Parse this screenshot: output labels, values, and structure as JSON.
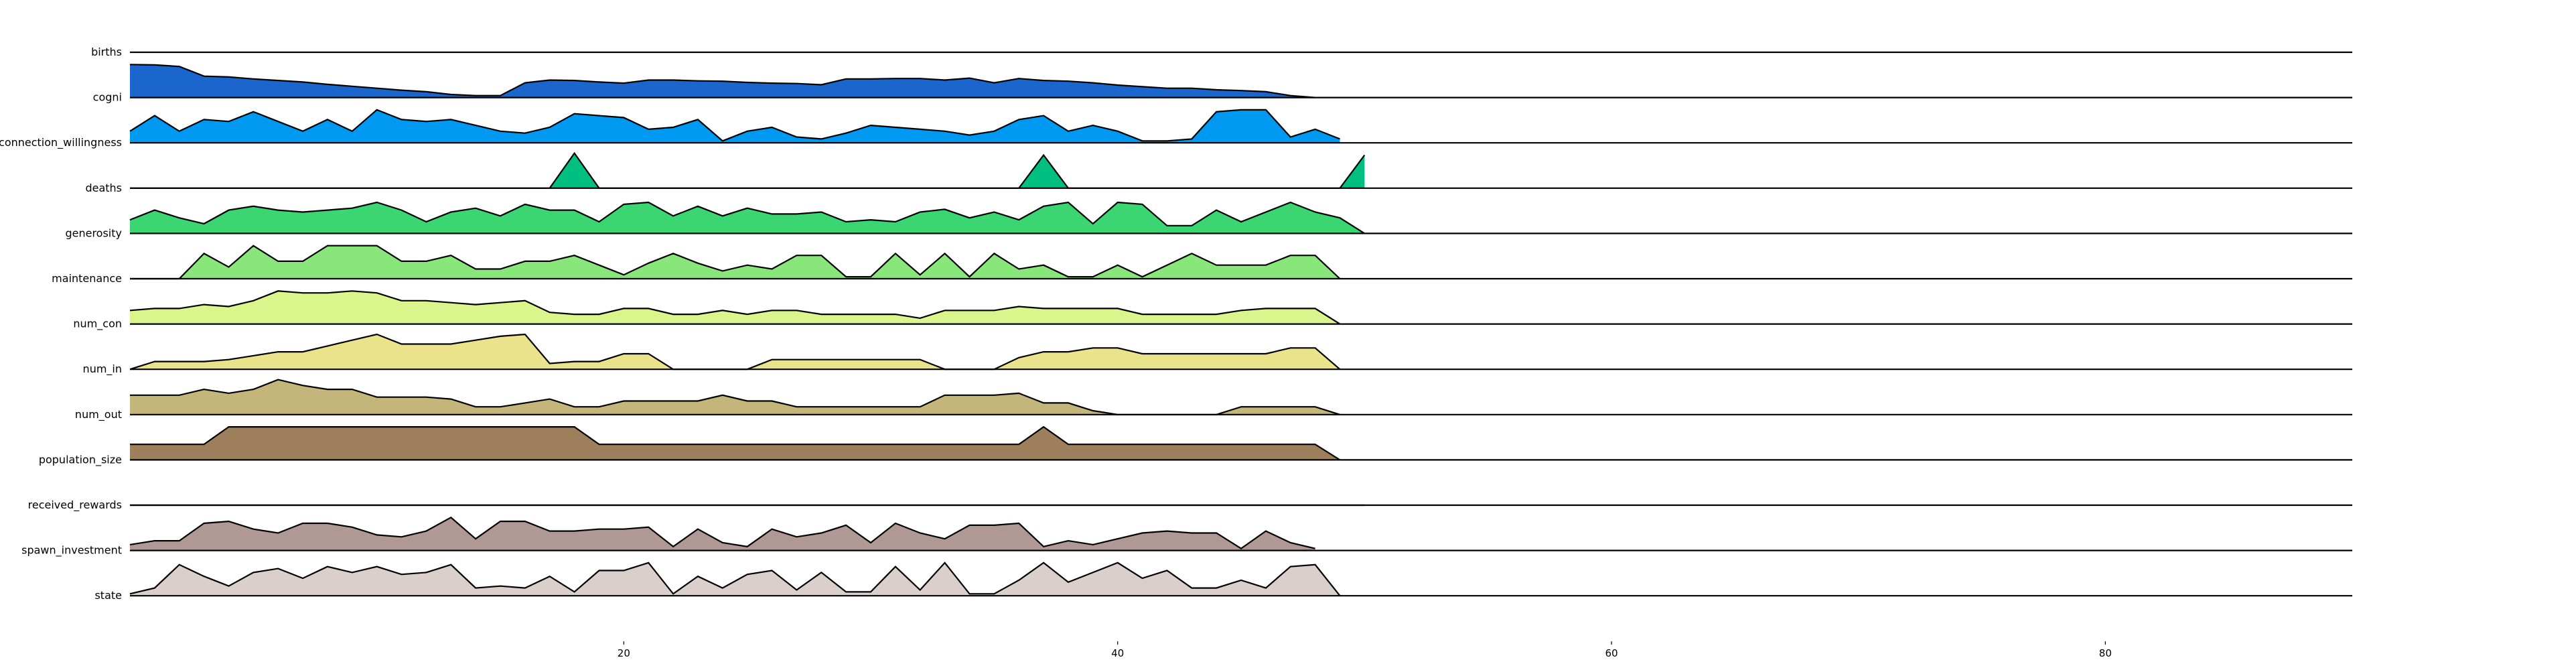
{
  "chart_data": {
    "type": "area",
    "xlim": [
      0,
      90
    ],
    "xticks": [
      20,
      40,
      60,
      80
    ],
    "xtick_labels": [
      "20",
      "40",
      "60",
      "80"
    ],
    "x": [
      0,
      1,
      2,
      3,
      4,
      5,
      6,
      7,
      8,
      9,
      10,
      11,
      12,
      13,
      14,
      15,
      16,
      17,
      18,
      19,
      20,
      21,
      22,
      23,
      24,
      25,
      26,
      27,
      28,
      29,
      30,
      31,
      32,
      33,
      34,
      35,
      36,
      37,
      38,
      39,
      40,
      41,
      42,
      43,
      44,
      45,
      46,
      47,
      48,
      49,
      50
    ],
    "series": [
      {
        "name": "births",
        "color": "#1a66cc",
        "values": [
          0.85,
          0.84,
          0.8,
          0.55,
          0.53,
          0.48,
          0.44,
          0.4,
          0.34,
          0.29,
          0.24,
          0.19,
          0.15,
          0.08,
          0.05,
          0.05,
          0.38,
          0.45,
          0.44,
          0.4,
          0.37,
          0.45,
          0.45,
          0.43,
          0.42,
          0.39,
          0.37,
          0.36,
          0.33,
          0.48,
          0.48,
          0.49,
          0.49,
          0.45,
          0.5,
          0.38,
          0.49,
          0.44,
          0.42,
          0.38,
          0.32,
          0.28,
          0.24,
          0.24,
          0.2,
          0.18,
          0.15,
          0.05,
          0.0,
          null,
          null
        ]
      },
      {
        "name": "cogni",
        "color": "#0099f2",
        "values": [
          0.3,
          0.7,
          0.3,
          0.6,
          0.55,
          0.8,
          0.55,
          0.3,
          0.6,
          0.3,
          0.85,
          0.6,
          0.55,
          0.6,
          0.45,
          0.3,
          0.25,
          0.4,
          0.75,
          0.7,
          0.65,
          0.35,
          0.4,
          0.6,
          0.05,
          0.3,
          0.4,
          0.15,
          0.1,
          0.25,
          0.45,
          0.4,
          0.35,
          0.3,
          0.2,
          0.3,
          0.6,
          0.7,
          0.3,
          0.45,
          0.3,
          0.05,
          0.05,
          0.1,
          0.8,
          0.85,
          0.85,
          0.15,
          0.35,
          0.1,
          null
        ]
      },
      {
        "name": "connection_willingness",
        "color": "#00bf80",
        "values": [
          0.0,
          0.0,
          0.0,
          0.0,
          0.0,
          0.0,
          0.0,
          0.0,
          0.0,
          0.0,
          0.0,
          0.0,
          0.0,
          0.0,
          0.0,
          0.0,
          0.0,
          0.0,
          0.9,
          0.0,
          0.0,
          0.0,
          0.0,
          0.0,
          0.0,
          0.0,
          0.0,
          0.0,
          0.0,
          0.0,
          0.0,
          0.0,
          0.0,
          0.0,
          0.0,
          0.0,
          0.0,
          0.85,
          0.0,
          0.0,
          0.0,
          0.0,
          0.0,
          0.0,
          0.0,
          0.0,
          0.0,
          0.0,
          0.0,
          0.0,
          0.85
        ]
      },
      {
        "name": "deaths",
        "color": "#3bd671",
        "values": [
          0.35,
          0.6,
          0.4,
          0.25,
          0.6,
          0.7,
          0.6,
          0.55,
          0.6,
          0.65,
          0.8,
          0.6,
          0.3,
          0.55,
          0.65,
          0.45,
          0.75,
          0.6,
          0.6,
          0.3,
          0.75,
          0.8,
          0.45,
          0.7,
          0.45,
          0.65,
          0.5,
          0.5,
          0.55,
          0.3,
          0.35,
          0.3,
          0.55,
          0.62,
          0.4,
          0.55,
          0.35,
          0.7,
          0.8,
          0.25,
          0.8,
          0.75,
          0.2,
          0.2,
          0.6,
          0.3,
          0.55,
          0.8,
          0.55,
          0.4,
          0.0
        ]
      },
      {
        "name": "generosity",
        "color": "#88e67a",
        "values": [
          0.0,
          0.0,
          0.0,
          0.65,
          0.3,
          0.85,
          0.45,
          0.45,
          0.85,
          0.85,
          0.85,
          0.45,
          0.45,
          0.6,
          0.25,
          0.25,
          0.45,
          0.45,
          0.6,
          0.35,
          0.1,
          0.4,
          0.65,
          0.4,
          0.2,
          0.35,
          0.25,
          0.6,
          0.6,
          0.05,
          0.05,
          0.65,
          0.1,
          0.65,
          0.05,
          0.65,
          0.25,
          0.35,
          0.05,
          0.05,
          0.35,
          0.05,
          0.35,
          0.65,
          0.35,
          0.35,
          0.35,
          0.6,
          0.6,
          0.0,
          null
        ]
      },
      {
        "name": "maintenance",
        "color": "#d9f58c",
        "values": [
          0.35,
          0.4,
          0.4,
          0.5,
          0.45,
          0.6,
          0.85,
          0.8,
          0.8,
          0.85,
          0.8,
          0.6,
          0.6,
          0.55,
          0.5,
          0.55,
          0.6,
          0.3,
          0.25,
          0.25,
          0.4,
          0.4,
          0.25,
          0.25,
          0.35,
          0.25,
          0.35,
          0.35,
          0.25,
          0.25,
          0.25,
          0.25,
          0.15,
          0.35,
          0.35,
          0.35,
          0.45,
          0.4,
          0.4,
          0.4,
          0.4,
          0.25,
          0.25,
          0.25,
          0.25,
          0.35,
          0.4,
          0.4,
          0.4,
          0.0,
          null
        ]
      },
      {
        "name": "num_con",
        "color": "#ebe38c",
        "values": [
          0.0,
          0.2,
          0.2,
          0.2,
          0.25,
          0.35,
          0.45,
          0.45,
          0.6,
          0.75,
          0.9,
          0.65,
          0.65,
          0.65,
          0.75,
          0.85,
          0.9,
          0.15,
          0.2,
          0.2,
          0.4,
          0.4,
          0.0,
          0.0,
          0.0,
          0.0,
          0.25,
          0.25,
          0.25,
          0.25,
          0.25,
          0.25,
          0.25,
          0.0,
          0.0,
          0.0,
          0.3,
          0.45,
          0.45,
          0.55,
          0.55,
          0.4,
          0.4,
          0.4,
          0.4,
          0.4,
          0.4,
          0.55,
          0.55,
          0.0,
          null
        ]
      },
      {
        "name": "num_in",
        "color": "#c4b57a",
        "values": [
          0.5,
          0.5,
          0.5,
          0.65,
          0.55,
          0.65,
          0.9,
          0.75,
          0.65,
          0.65,
          0.45,
          0.45,
          0.45,
          0.4,
          0.2,
          0.2,
          0.3,
          0.4,
          0.2,
          0.2,
          0.35,
          0.35,
          0.35,
          0.35,
          0.5,
          0.35,
          0.35,
          0.2,
          0.2,
          0.2,
          0.2,
          0.2,
          0.2,
          0.5,
          0.5,
          0.5,
          0.55,
          0.3,
          0.3,
          0.1,
          0.0,
          0.0,
          0.0,
          0.0,
          0.0,
          0.2,
          0.2,
          0.2,
          0.2,
          0.0,
          null
        ]
      },
      {
        "name": "num_out",
        "color": "#9e7f5c",
        "values": [
          0.4,
          0.4,
          0.4,
          0.4,
          0.85,
          0.85,
          0.85,
          0.85,
          0.85,
          0.85,
          0.85,
          0.85,
          0.85,
          0.85,
          0.85,
          0.85,
          0.85,
          0.85,
          0.85,
          0.4,
          0.4,
          0.4,
          0.4,
          0.4,
          0.4,
          0.4,
          0.4,
          0.4,
          0.4,
          0.4,
          0.4,
          0.4,
          0.4,
          0.4,
          0.4,
          0.4,
          0.4,
          0.85,
          0.4,
          0.4,
          0.4,
          0.4,
          0.4,
          0.4,
          0.4,
          0.4,
          0.4,
          0.4,
          0.4,
          0.0,
          null
        ]
      },
      {
        "name": "population_size",
        "color": "#bbbbbb",
        "values": [
          0.0,
          0.0,
          0.0,
          0.0,
          0.0,
          0.0,
          0.0,
          0.0,
          0.0,
          0.0,
          0.0,
          0.0,
          0.0,
          0.0,
          0.0,
          0.0,
          0.0,
          0.0,
          0.0,
          0.0,
          0.0,
          0.0,
          0.0,
          0.0,
          0.0,
          0.0,
          0.0,
          0.0,
          0.0,
          0.0,
          0.0,
          0.0,
          0.0,
          0.0,
          0.0,
          0.0,
          0.0,
          0.0,
          0.0,
          0.0,
          0.0,
          0.0,
          0.0,
          0.0,
          0.0,
          0.0,
          0.0,
          0.0,
          0.0,
          0.0,
          0.0
        ]
      },
      {
        "name": "received_rewards",
        "color": "#b09994",
        "values": [
          0.15,
          0.25,
          0.25,
          0.7,
          0.75,
          0.55,
          0.45,
          0.7,
          0.7,
          0.6,
          0.4,
          0.35,
          0.5,
          0.85,
          0.3,
          0.75,
          0.75,
          0.5,
          0.5,
          0.55,
          0.55,
          0.6,
          0.1,
          0.55,
          0.2,
          0.1,
          0.55,
          0.35,
          0.45,
          0.65,
          0.2,
          0.7,
          0.45,
          0.3,
          0.65,
          0.65,
          0.7,
          0.1,
          0.25,
          0.15,
          0.3,
          0.45,
          0.5,
          0.45,
          0.45,
          0.05,
          0.5,
          0.2,
          0.05,
          null,
          null
        ]
      },
      {
        "name": "spawn_investment",
        "color": "#dbcfcc",
        "values": [
          0.05,
          0.2,
          0.8,
          0.5,
          0.25,
          0.6,
          0.7,
          0.45,
          0.75,
          0.6,
          0.75,
          0.55,
          0.6,
          0.8,
          0.2,
          0.25,
          0.2,
          0.5,
          0.1,
          0.65,
          0.65,
          0.85,
          0.05,
          0.5,
          0.2,
          0.55,
          0.65,
          0.15,
          0.6,
          0.1,
          0.1,
          0.75,
          0.15,
          0.85,
          0.05,
          0.05,
          0.4,
          0.85,
          0.35,
          0.6,
          0.85,
          0.45,
          0.65,
          0.2,
          0.2,
          0.4,
          0.2,
          0.75,
          0.8,
          0.0,
          null
        ]
      }
    ],
    "row_labels": [
      "births",
      "cogni",
      "connection_willingness",
      "deaths",
      "generosity",
      "maintenance",
      "num_con",
      "num_in",
      "num_out",
      "population_size",
      "received_rewards",
      "spawn_investment",
      "state"
    ],
    "grid": false,
    "legend": "none"
  }
}
